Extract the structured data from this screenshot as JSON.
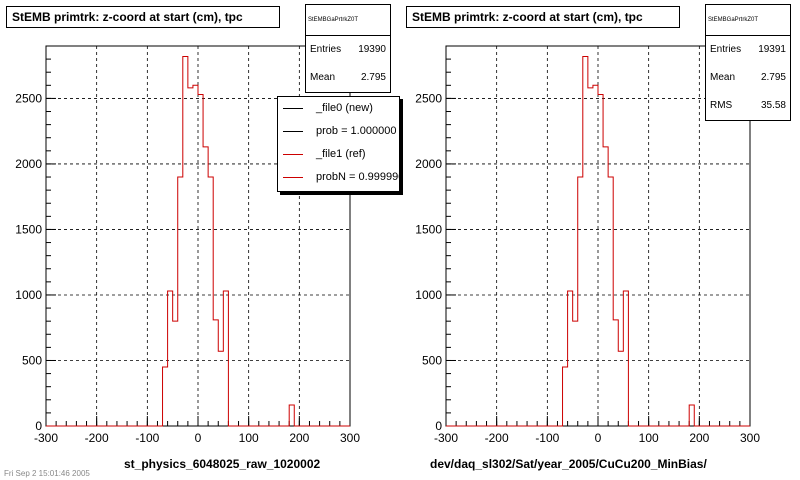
{
  "chart_data": [
    {
      "type": "histogram",
      "title": "StEMB primtrk: z-coord at start (cm), tpc",
      "xlabel": "st_physics_6048025_raw_1020002",
      "xlim": [
        -300,
        300
      ],
      "ylim": [
        0,
        2900
      ],
      "x_ticks": [
        "-300",
        "-200",
        "-100",
        "0",
        "100",
        "200",
        "300"
      ],
      "y_ticks": [
        "0",
        "500",
        "1000",
        "1500",
        "2000",
        "2500"
      ],
      "grid": true,
      "bin_width": 10,
      "bins": [
        {
          "x0": -70,
          "value": 450
        },
        {
          "x0": -60,
          "value": 1030
        },
        {
          "x0": -50,
          "value": 800
        },
        {
          "x0": -40,
          "value": 1900
        },
        {
          "x0": -30,
          "value": 2820
        },
        {
          "x0": -20,
          "value": 2580
        },
        {
          "x0": -10,
          "value": 2600
        },
        {
          "x0": 0,
          "value": 2530
        },
        {
          "x0": 10,
          "value": 2130
        },
        {
          "x0": 20,
          "value": 1900
        },
        {
          "x0": 30,
          "value": 810
        },
        {
          "x0": 40,
          "value": 570
        },
        {
          "x0": 50,
          "value": 1030
        },
        {
          "x0": 180,
          "value": 160
        }
      ],
      "stats": {
        "name": "StEMBGaPrtrkZ0T",
        "entries_label": "Entries",
        "entries": "19390",
        "mean_label": "Mean",
        "mean": "2.795"
      },
      "legend": [
        {
          "label": "_file0 (new)",
          "color": "#000000"
        },
        {
          "label": "prob = 1.000000",
          "color": "#000000"
        },
        {
          "label": "_file1 (ref)",
          "color": "#cc0000"
        },
        {
          "label": "probN = 0.999990",
          "color": "#cc0000"
        }
      ],
      "series_color": "#cc0000"
    },
    {
      "type": "histogram",
      "title": "StEMB primtrk: z-coord at start (cm), tpc",
      "xlabel": "dev/daq_sl302/Sat/year_2005/CuCu200_MinBias/",
      "xlim": [
        -300,
        300
      ],
      "ylim": [
        0,
        2900
      ],
      "x_ticks": [
        "-300",
        "-200",
        "-100",
        "0",
        "100",
        "200",
        "300"
      ],
      "y_ticks": [
        "0",
        "500",
        "1000",
        "1500",
        "2000",
        "2500"
      ],
      "grid": true,
      "bin_width": 10,
      "bins": [
        {
          "x0": -70,
          "value": 450
        },
        {
          "x0": -60,
          "value": 1030
        },
        {
          "x0": -50,
          "value": 800
        },
        {
          "x0": -40,
          "value": 1900
        },
        {
          "x0": -30,
          "value": 2820
        },
        {
          "x0": -20,
          "value": 2580
        },
        {
          "x0": -10,
          "value": 2600
        },
        {
          "x0": 0,
          "value": 2530
        },
        {
          "x0": 10,
          "value": 2130
        },
        {
          "x0": 20,
          "value": 1900
        },
        {
          "x0": 30,
          "value": 810
        },
        {
          "x0": 40,
          "value": 570
        },
        {
          "x0": 50,
          "value": 1030
        },
        {
          "x0": 180,
          "value": 160
        }
      ],
      "stats": {
        "name": "StEMBGaPrtrkZ0T",
        "entries_label": "Entries",
        "entries": "19391",
        "mean_label": "Mean",
        "mean": "2.795",
        "rms_label": "RMS",
        "rms": "35.58"
      },
      "series_color": "#cc0000"
    }
  ],
  "footer": "Fri Sep 2 15:01:46 2005"
}
